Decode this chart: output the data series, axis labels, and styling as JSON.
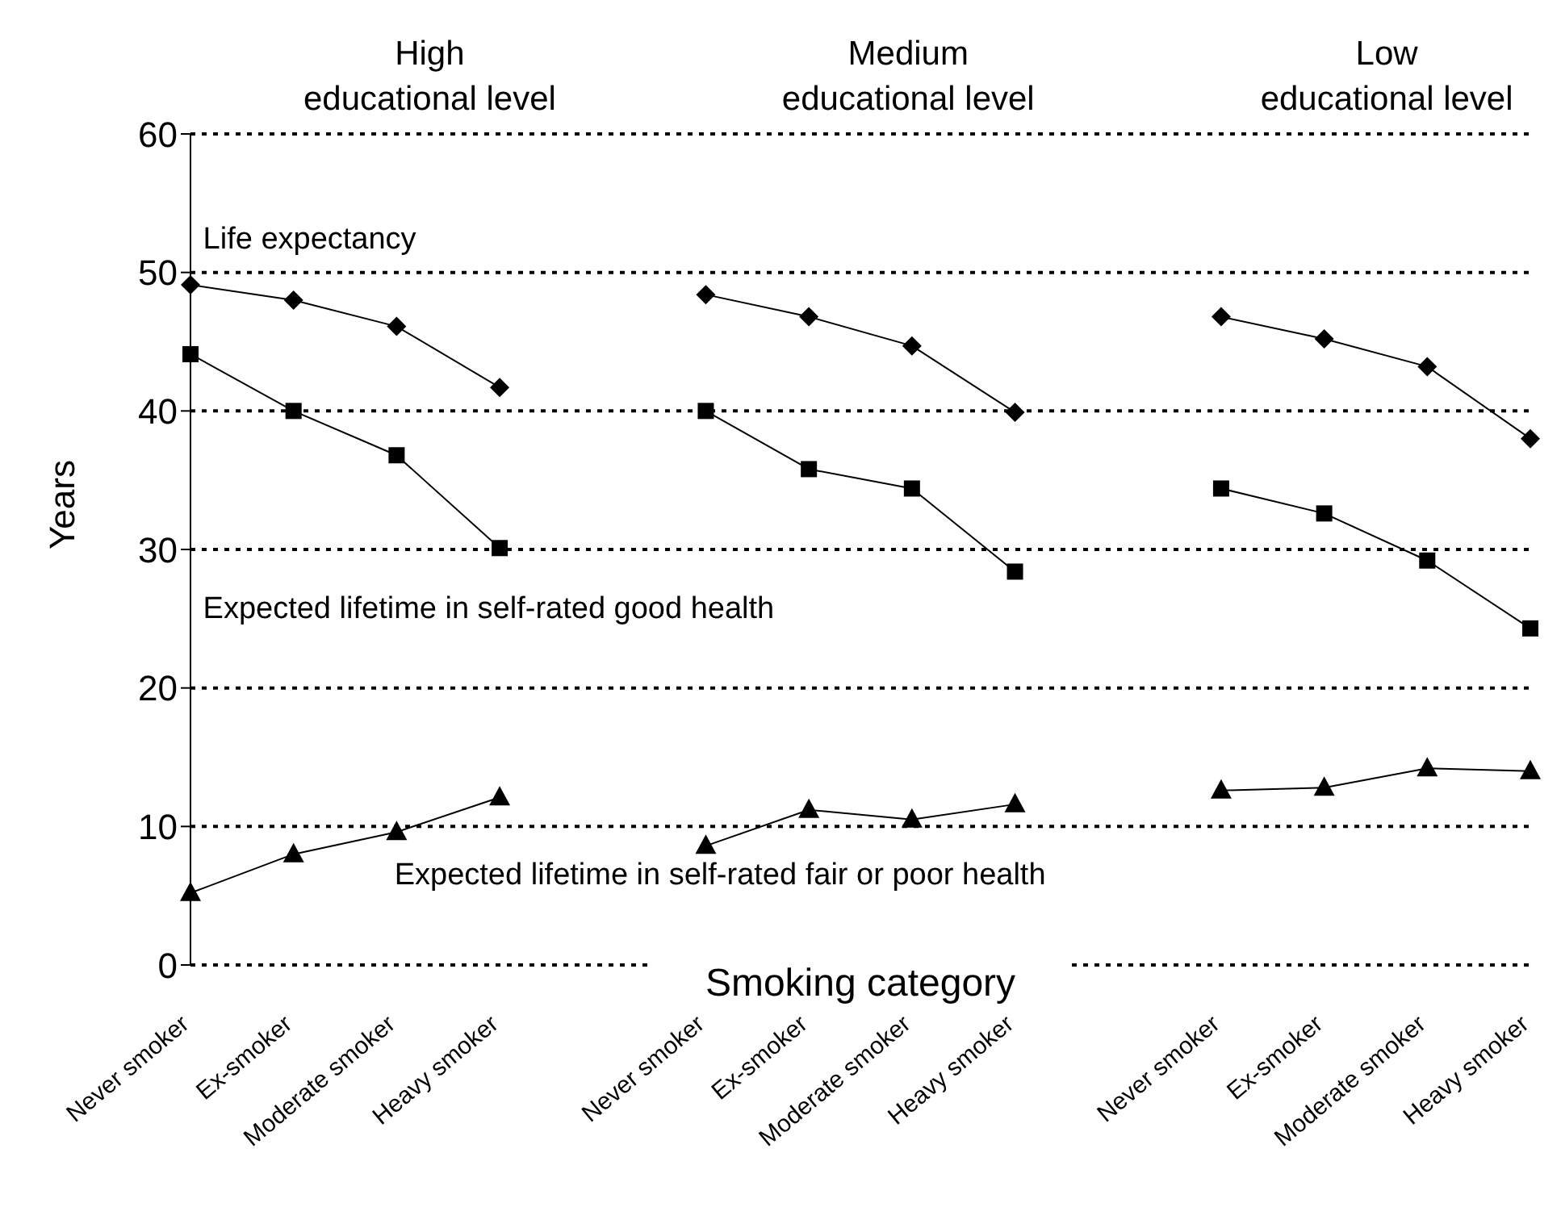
{
  "chart_data": {
    "type": "line",
    "categories": [
      "Never smoker",
      "Ex-smoker",
      "Moderate smoker",
      "Heavy smoker",
      null,
      "Never smoker",
      "Ex-smoker",
      "Moderate smoker",
      "Heavy smoker",
      null,
      "Never smoker",
      "Ex-smoker",
      "Moderate smoker",
      "Heavy smoker"
    ],
    "series": [
      {
        "name": "Life expectancy",
        "color": "#000000",
        "marker": "diamond",
        "values": [
          49.1,
          48,
          46.1,
          41.7,
          null,
          48.4,
          46.8,
          44.7,
          39.9,
          null,
          46.8,
          45.2,
          43.2,
          38
        ]
      },
      {
        "name": "Expected lifetime in self-rated good health",
        "color": "#000000",
        "marker": "square",
        "values": [
          44.1,
          40,
          36.8,
          30.1,
          null,
          40,
          35.8,
          34.4,
          28.4,
          null,
          34.4,
          32.6,
          29.2,
          24.3
        ]
      },
      {
        "name": "Expected lifetime in self-rated fair or poor health",
        "color": "#000000",
        "marker": "triangle",
        "values": [
          5.2,
          8,
          9.6,
          12.1,
          null,
          8.6,
          11.2,
          10.5,
          11.6,
          null,
          12.6,
          12.8,
          14.2,
          14
        ]
      }
    ],
    "xlabel": "Smoking category",
    "ylabel": "Years",
    "annotations": [
      "High\neducational level",
      "Medium\neducational level",
      "Low\neducational level"
    ],
    "ylim": [
      0,
      60
    ],
    "yticks": [
      0,
      10,
      20,
      30,
      40,
      50,
      60
    ],
    "grid": "y",
    "line_style": "solid"
  }
}
